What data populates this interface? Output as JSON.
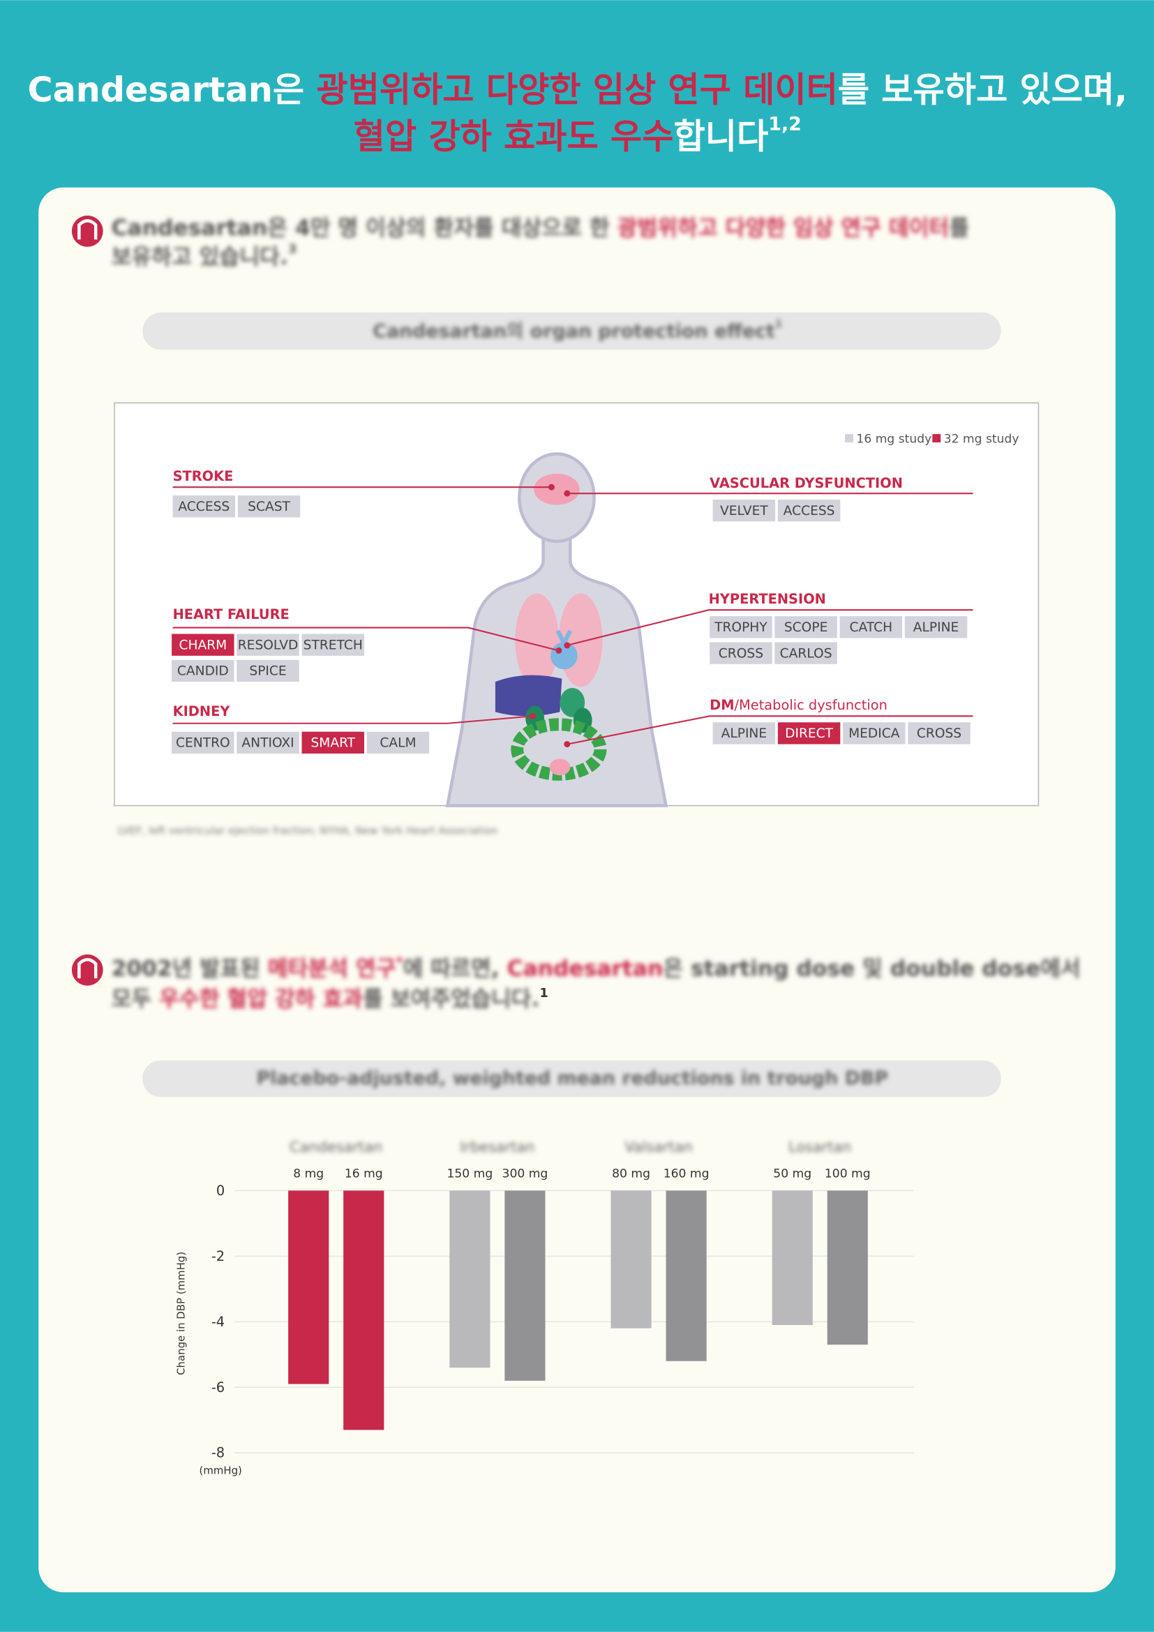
{
  "header": {
    "title": [
      "Candesartan은 ",
      "광범위하고 다양한 임상 연구 데이터",
      "를 보유하고 있으며,",
      "혈압 강하 효과도 우수",
      "합니다",
      "1,2"
    ]
  },
  "section1": {
    "heading": [
      "Candesartan은 4만 명 이상의 환자를 대상으로 한 ",
      "광범위하고 다양한 임상 연구 데이터",
      "를",
      "보유하고 있습니다.",
      "3"
    ],
    "panel_title": [
      "Candesartan의 organ protection effect",
      "1"
    ],
    "legend": [
      {
        "label": "16 mg study",
        "color": "#d3d3dc"
      },
      {
        "label": "32 mg study",
        "color": "#c8284a"
      }
    ],
    "organs": [
      {
        "name": "STROKE",
        "studies": [
          {
            "label": "ACCESS",
            "color": "#d3d3dc"
          },
          {
            "label": "SCAST",
            "color": "#d3d3dc"
          }
        ]
      },
      {
        "name": "VASCULAR DYSFUNCTION",
        "studies": [
          {
            "label": "VELVET",
            "color": "#d3d3dc"
          },
          {
            "label": "ACCESS",
            "color": "#d3d3dc"
          }
        ]
      },
      {
        "name": "HEART FAILURE",
        "studies": [
          {
            "label": "CHARM",
            "color": "#c8284a"
          },
          {
            "label": "RESOLVD",
            "color": "#d3d3dc"
          },
          {
            "label": "STRETCH",
            "color": "#d3d3dc"
          },
          {
            "label": "CANDID",
            "color": "#d3d3dc"
          },
          {
            "label": "SPICE",
            "color": "#d3d3dc"
          }
        ]
      },
      {
        "name": "HYPERTENSION",
        "studies": [
          {
            "label": "TROPHY",
            "color": "#d3d3dc"
          },
          {
            "label": "SCOPE",
            "color": "#d3d3dc"
          },
          {
            "label": "CATCH",
            "color": "#d3d3dc"
          },
          {
            "label": "ALPINE",
            "color": "#d3d3dc"
          },
          {
            "label": "CROSS",
            "color": "#d3d3dc"
          },
          {
            "label": "CARLOS",
            "color": "#d3d3dc"
          }
        ]
      },
      {
        "name": "KIDNEY",
        "studies": [
          {
            "label": "CENTRO",
            "color": "#d3d3dc"
          },
          {
            "label": "ANTIOXI",
            "color": "#d3d3dc"
          },
          {
            "label": "SMART",
            "color": "#c8284a"
          },
          {
            "label": "CALM",
            "color": "#d3d3dc"
          }
        ]
      },
      {
        "name": "DM",
        "name_suffix": "/Metabolic dysfunction",
        "studies": [
          {
            "label": "ALPINE",
            "color": "#d3d3dc"
          },
          {
            "label": "DIRECT",
            "color": "#c8284a"
          },
          {
            "label": "MEDICA",
            "color": "#d3d3dc"
          },
          {
            "label": "CROSS",
            "color": "#d3d3dc"
          }
        ]
      }
    ],
    "footnote": "LVEF, left ventricular ejection fraction; NYHA, New York Heart Association"
  },
  "section2": {
    "heading": [
      "2002년 발표된 ",
      "메타분석 연구",
      "*",
      "에 따르면, ",
      "Candesartan",
      "은 starting dose 및 double dose에서",
      "모두 ",
      "우수한 혈압 강하 효과",
      "를 보여주었습니다.",
      "1"
    ],
    "panel_title": "Placebo-adjusted, weighted mean reductions in trough DBP"
  },
  "chart_data": {
    "type": "bar",
    "groups": [
      "Candesartan",
      "Irbesartan",
      "Valsartan",
      "Losartan"
    ],
    "categories": [
      "8 mg",
      "16 mg",
      "150 mg",
      "300 mg",
      "80 mg",
      "160 mg",
      "50 mg",
      "100 mg"
    ],
    "values": [
      -5.9,
      -7.3,
      -5.4,
      -5.8,
      -4.2,
      -5.2,
      -4.1,
      -4.7
    ],
    "colors": [
      "#c8284a",
      "#c8284a",
      "#b9b9bc",
      "#929295",
      "#b9b9bc",
      "#929295",
      "#b9b9bc",
      "#929295"
    ],
    "ylim": [
      -8,
      0
    ],
    "yticks": [
      0,
      -2,
      -4,
      -6,
      -8
    ],
    "y_label": "Change in DBP (mmHg)",
    "y_unit": "(mmHg)",
    "grid": true
  }
}
